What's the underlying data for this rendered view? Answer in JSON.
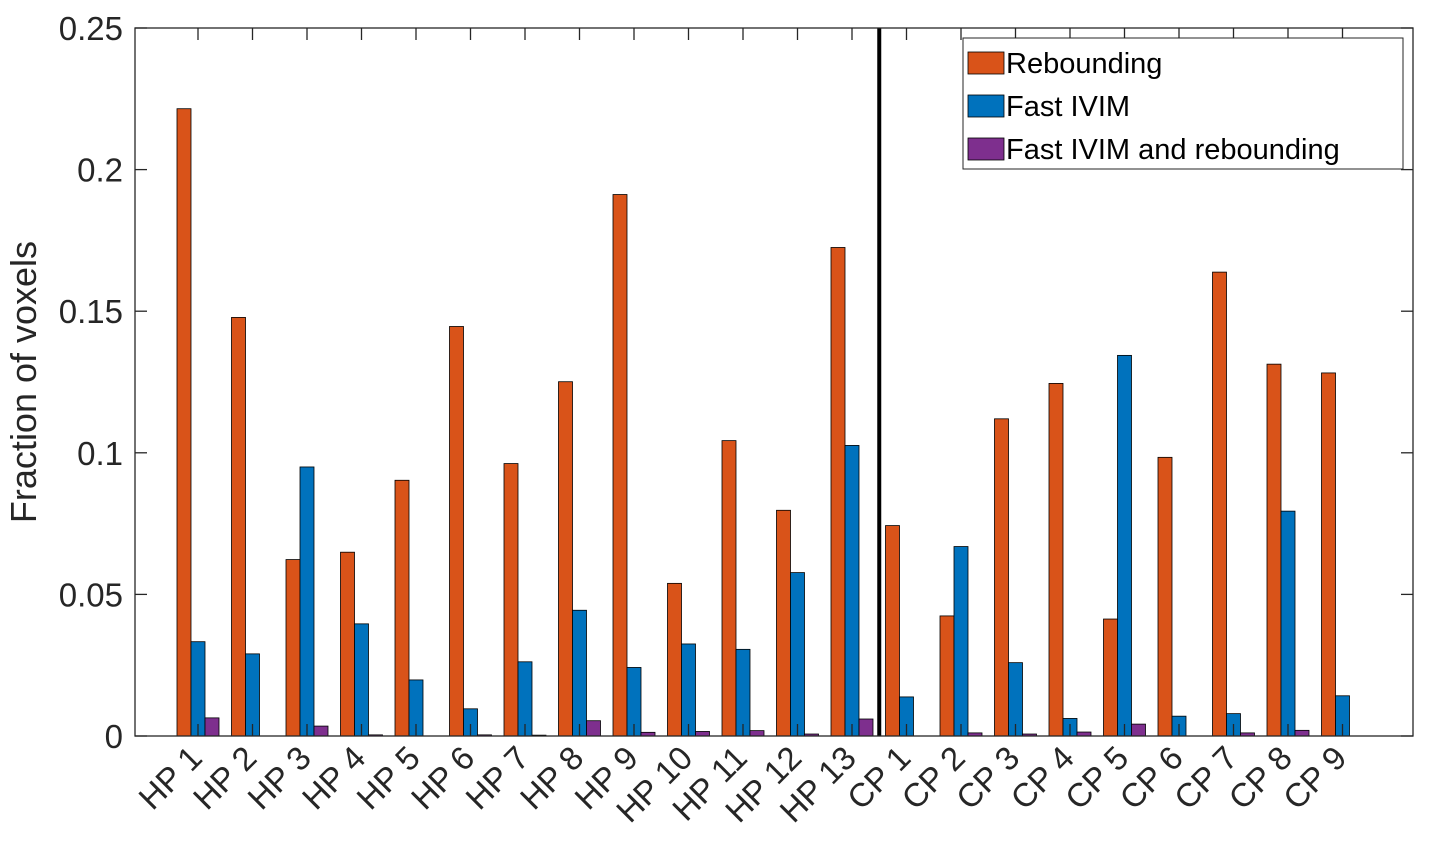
{
  "chart_data": {
    "type": "bar",
    "title": "",
    "xlabel": "",
    "ylabel": "Fraction of voxels",
    "ylim": [
      0,
      0.25
    ],
    "yticks": [
      0,
      0.05,
      0.1,
      0.15,
      0.2,
      0.25
    ],
    "ytick_labels": [
      "0",
      "0.05",
      "0.1",
      "0.15",
      "0.2",
      "0.25"
    ],
    "categories": [
      "HP 1",
      "HP 2",
      "HP 3",
      "HP 4",
      "HP 5",
      "HP 6",
      "HP 7",
      "HP 8",
      "HP 9",
      "HP 10",
      "HP 11",
      "HP 12",
      "HP 13",
      "CP 1",
      "CP 2",
      "CP 3",
      "CP 4",
      "CP 5",
      "CP 6",
      "CP 7",
      "CP 8",
      "CP 9"
    ],
    "separator_after": "HP 13",
    "grid": false,
    "legend_position": "top-right",
    "series": [
      {
        "name": "Rebounding",
        "color": "#D95319",
        "values": [
          0.2215,
          0.1478,
          0.0623,
          0.0649,
          0.0903,
          0.1446,
          0.0962,
          0.1251,
          0.1912,
          0.0539,
          0.1043,
          0.0797,
          0.1725,
          0.0743,
          0.0424,
          0.112,
          0.1245,
          0.0413,
          0.0984,
          0.1638,
          0.1313,
          0.1282
        ]
      },
      {
        "name": "Fast IVIM",
        "color": "#0072BD",
        "values": [
          0.0333,
          0.029,
          0.095,
          0.0396,
          0.0198,
          0.0096,
          0.0262,
          0.0444,
          0.0242,
          0.0325,
          0.0306,
          0.0577,
          0.1026,
          0.0138,
          0.0669,
          0.0259,
          0.0062,
          0.1344,
          0.007,
          0.0079,
          0.0794,
          0.0142
        ]
      },
      {
        "name": "Fast IVIM and rebounding",
        "color": "#7E2F8E",
        "values": [
          0.0064,
          0.0,
          0.0035,
          0.0004,
          0.0,
          0.0004,
          0.0003,
          0.0054,
          0.0013,
          0.0016,
          0.0019,
          0.0007,
          0.006,
          0.0,
          0.0011,
          0.0007,
          0.0014,
          0.0042,
          0.0,
          0.0011,
          0.002,
          0.0
        ]
      }
    ]
  }
}
